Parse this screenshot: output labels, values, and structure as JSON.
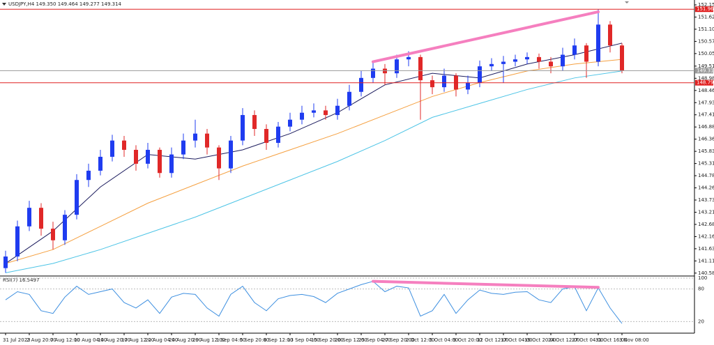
{
  "chart_data": {
    "type": "candlestick",
    "title": "USDJPY,H4  149.350 149.464 149.277 149.314",
    "categories": [
      "31 Jul 2023",
      null,
      "2 Aug 20:00",
      null,
      "7 Aug 12:00",
      null,
      "10 Aug 04:00",
      null,
      "14 Aug 20:00",
      null,
      "17 Aug 12:00",
      null,
      "22 Aug 04:00",
      null,
      "24 Aug 20:00",
      null,
      "29 Aug 12:00",
      null,
      "1 Sep 04:00",
      null,
      "5 Sep 20:00",
      null,
      "8 Sep 12:00",
      null,
      "13 Sep 04:00",
      null,
      "15 Sep 20:00",
      null,
      "20 Sep 12:00",
      null,
      "25 Sep 04:00",
      null,
      "27 Sep 20:00",
      null,
      "2 Oct 12:00",
      null,
      "5 Oct 04:00",
      null,
      "9 Oct 20:00",
      null,
      "12 Oct 12:00",
      null,
      "17 Oct 04:00",
      null,
      "19 Oct 20:00",
      null,
      "24 Oct 12:00",
      null,
      "27 Oct 04:00",
      null,
      "31 Oct 16:00",
      null,
      "3 Nov 08:00"
    ],
    "open": [
      140.8,
      141.3,
      142.6,
      143.4,
      142.5,
      142.0,
      143.1,
      144.6,
      145.0,
      145.6,
      146.3,
      145.9,
      145.3,
      145.9,
      144.9,
      145.7,
      146.3,
      146.6,
      146.0,
      145.1,
      146.3,
      147.4,
      146.8,
      146.2,
      146.9,
      147.2,
      147.5,
      147.6,
      147.4,
      147.8,
      148.4,
      149.0,
      149.4,
      149.2,
      149.8,
      149.9,
      148.9,
      148.6,
      149.1,
      148.5,
      148.8,
      149.5,
      149.6,
      149.7,
      149.8,
      149.9,
      149.7,
      149.5,
      150.0,
      150.4,
      149.7,
      151.3,
      150.4
    ],
    "high": [
      141.55,
      142.85,
      143.7,
      143.6,
      142.8,
      143.3,
      144.85,
      145.3,
      145.9,
      146.55,
      146.5,
      146.1,
      146.2,
      146.0,
      146.0,
      146.6,
      147.2,
      146.8,
      146.1,
      146.5,
      147.7,
      147.6,
      147.0,
      147.1,
      147.5,
      147.8,
      147.9,
      147.8,
      148.1,
      148.7,
      149.3,
      149.7,
      149.6,
      150.0,
      150.15,
      150.0,
      149.1,
      149.4,
      149.2,
      149.1,
      149.75,
      149.85,
      149.95,
      150.0,
      150.1,
      150.05,
      149.9,
      150.3,
      150.7,
      150.5,
      151.95,
      151.45,
      150.5
    ],
    "low": [
      140.6,
      141.1,
      142.4,
      142.2,
      141.6,
      141.8,
      142.9,
      144.3,
      144.8,
      145.4,
      145.6,
      145.0,
      145.1,
      144.7,
      144.7,
      145.5,
      146.0,
      145.7,
      144.6,
      144.9,
      146.1,
      146.5,
      145.9,
      146.0,
      146.7,
      147.0,
      147.3,
      147.2,
      147.2,
      147.6,
      148.2,
      148.8,
      148.7,
      149.0,
      149.5,
      147.2,
      148.3,
      148.4,
      148.2,
      148.3,
      148.6,
      149.3,
      148.8,
      149.5,
      149.6,
      149.4,
      149.2,
      149.3,
      149.8,
      149.0,
      149.5,
      150.1,
      149.2
    ],
    "close": [
      141.3,
      142.6,
      143.4,
      142.5,
      142.0,
      143.1,
      144.6,
      145.0,
      145.6,
      146.3,
      145.9,
      145.3,
      145.9,
      144.9,
      145.7,
      146.3,
      146.6,
      146.0,
      145.1,
      146.3,
      147.4,
      146.8,
      146.2,
      146.9,
      147.2,
      147.5,
      147.6,
      147.4,
      147.8,
      148.4,
      149.0,
      149.4,
      149.2,
      149.8,
      149.9,
      148.9,
      148.6,
      149.1,
      148.5,
      148.8,
      149.5,
      149.6,
      149.7,
      149.8,
      149.9,
      149.7,
      149.5,
      150.0,
      150.4,
      149.7,
      151.3,
      150.4,
      149.31
    ],
    "up_color": "#1f3cf0",
    "down_color": "#e02828",
    "series": [
      {
        "color": "#1c1c5e",
        "x": [
          0,
          4,
          8,
          12,
          16,
          20,
          24,
          28,
          32,
          36,
          40,
          44,
          48,
          52
        ],
        "values": [
          141.0,
          142.4,
          144.3,
          145.7,
          145.5,
          145.9,
          146.6,
          147.5,
          148.7,
          149.2,
          149.0,
          149.6,
          150.0,
          150.5
        ]
      },
      {
        "color": "#f5a040",
        "x": [
          0,
          4,
          8,
          12,
          16,
          20,
          24,
          28,
          32,
          36,
          40,
          44,
          48,
          52
        ],
        "values": [
          141.0,
          141.6,
          142.6,
          143.6,
          144.4,
          145.2,
          145.9,
          146.6,
          147.4,
          148.2,
          148.8,
          149.3,
          149.6,
          149.8
        ]
      },
      {
        "color": "#4cc4e6",
        "x": [
          0,
          4,
          8,
          12,
          16,
          20,
          24,
          28,
          32,
          36,
          40,
          44,
          48,
          52
        ],
        "values": [
          140.6,
          141.0,
          141.6,
          142.3,
          143.0,
          143.8,
          144.6,
          145.4,
          146.3,
          147.3,
          147.9,
          148.5,
          149.0,
          149.3
        ]
      }
    ],
    "ylim": [
      140.49,
      152.36
    ],
    "yticks": [
      {
        "value": 152.15,
        "label": "152.150"
      },
      151.625,
      {
        "value": 151.1,
        "label": "151.100"
      },
      150.575,
      {
        "value": 150.05,
        "label": "150.050"
      },
      {
        "value": 149.51,
        "label": "149.510"
      },
      148.985,
      {
        "value": 148.46,
        "label": "148.460"
      },
      147.935,
      {
        "value": 147.41,
        "label": "147.410"
      },
      146.885,
      {
        "value": 146.36,
        "label": "146.360"
      },
      145.835,
      {
        "value": 145.31,
        "label": "145.310"
      },
      144.785,
      {
        "value": 144.26,
        "label": "144.260"
      },
      143.735,
      {
        "value": 143.21,
        "label": "143.210"
      },
      142.685,
      {
        "value": 142.16,
        "label": "142.160"
      },
      141.635,
      {
        "value": 141.11,
        "label": "141.110"
      },
      140.585
    ],
    "hlines": [
      {
        "value": 151.963,
        "color": "#e02020"
      },
      {
        "value": 149.314,
        "color": "#9a9a9a"
      },
      {
        "value": 148.793,
        "color": "#e02020"
      }
    ],
    "trendlines": [
      {
        "x": [
          31,
          50
        ],
        "values": [
          149.7,
          151.85
        ],
        "color": "#f57fbf"
      }
    ],
    "rsi": {
      "label": "RSI(7) 16.5497",
      "color": "#3d8fe0",
      "values": [
        60,
        75,
        70,
        40,
        35,
        65,
        85,
        70,
        75,
        80,
        55,
        45,
        60,
        35,
        65,
        72,
        70,
        45,
        30,
        70,
        85,
        55,
        40,
        62,
        68,
        70,
        66,
        55,
        72,
        80,
        88,
        94,
        75,
        85,
        82,
        30,
        40,
        70,
        35,
        60,
        78,
        72,
        70,
        74,
        75,
        60,
        55,
        80,
        84,
        40,
        82,
        45,
        16.5
      ],
      "ylim": [
        0,
        100
      ],
      "yticks": [
        100,
        80,
        20
      ],
      "trendline": {
        "x": [
          31,
          50
        ],
        "values": [
          94,
          83
        ],
        "color": "#f57fbf"
      }
    }
  }
}
